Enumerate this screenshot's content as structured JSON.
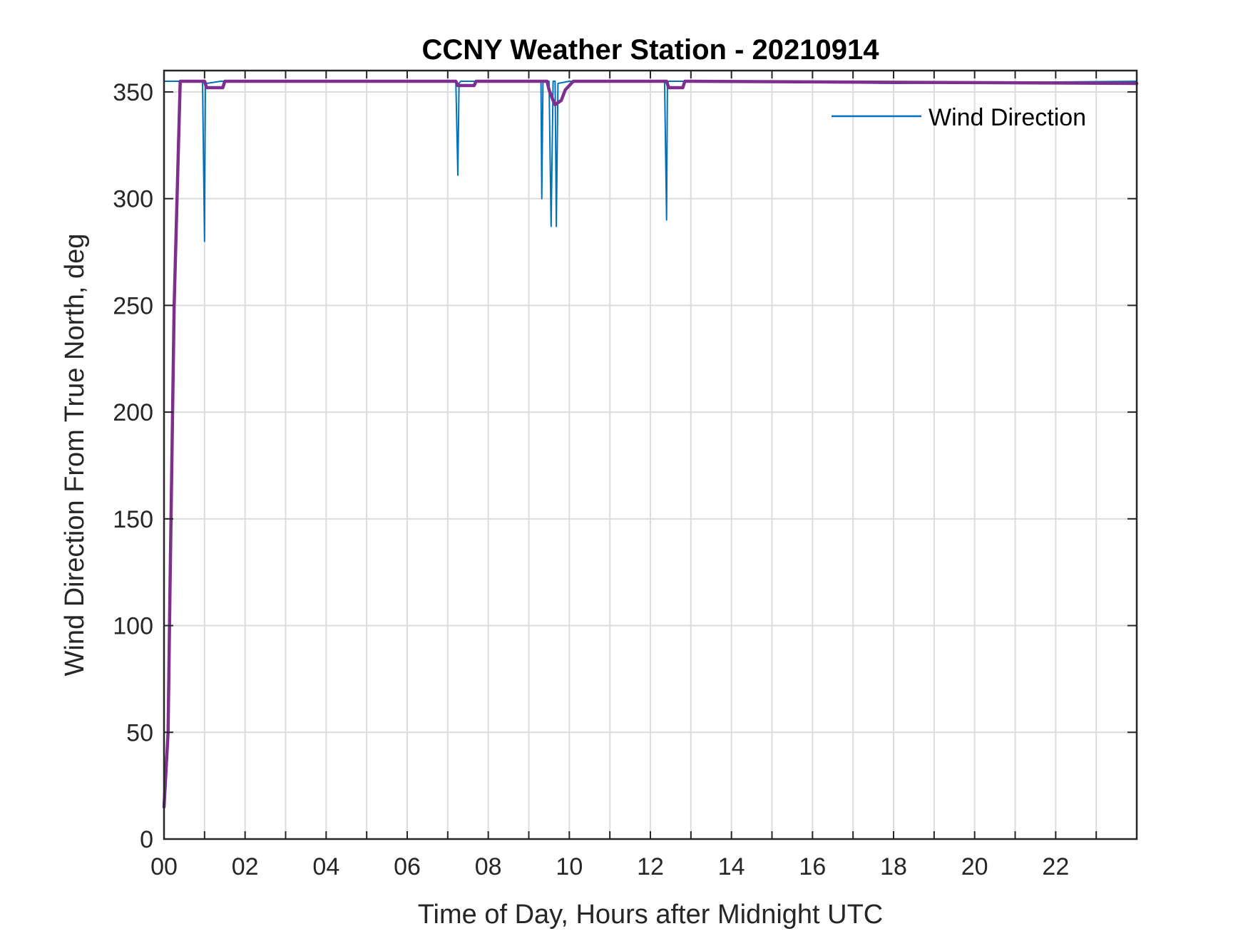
{
  "chart_data": {
    "type": "line",
    "title": "CCNY Weather Station - 20210914",
    "xlabel": "Time of Day, Hours after Midnight UTC",
    "ylabel": "Wind Direction From True North, deg",
    "xlim": [
      0,
      24
    ],
    "ylim": [
      0,
      360
    ],
    "xticks": [
      0,
      2,
      4,
      6,
      8,
      10,
      12,
      14,
      16,
      18,
      20,
      22
    ],
    "xtick_labels": [
      "00",
      "02",
      "04",
      "06",
      "08",
      "10",
      "12",
      "14",
      "16",
      "18",
      "20",
      "22"
    ],
    "yticks": [
      0,
      50,
      100,
      150,
      200,
      250,
      300,
      350
    ],
    "ytick_labels": [
      "0",
      "50",
      "100",
      "150",
      "200",
      "250",
      "300",
      "350"
    ],
    "grid": true,
    "legend": {
      "position": "top-right",
      "entries": [
        "Wind Direction"
      ]
    },
    "series": [
      {
        "name": "Wind Direction",
        "color": "#0072BD",
        "x": [
          0,
          0.95,
          1.0,
          1.02,
          1.05,
          1.4,
          2.0,
          7.2,
          7.25,
          7.28,
          7.32,
          7.5,
          9.3,
          9.32,
          9.35,
          9.5,
          9.55,
          9.6,
          9.65,
          9.68,
          9.72,
          10.0,
          12.35,
          12.4,
          12.42,
          12.45,
          13.0,
          18.0,
          24.0
        ],
        "y": [
          355,
          355,
          280,
          355,
          354,
          355,
          355,
          355,
          311,
          354,
          355,
          355,
          355,
          300,
          355,
          355,
          287,
          355,
          355,
          287,
          354,
          355,
          355,
          290,
          354,
          355,
          355,
          354,
          355
        ]
      },
      {
        "color": "#7E2F8E",
        "x": [
          0,
          0.1,
          0.15,
          0.25,
          0.4,
          0.6,
          1.0,
          1.05,
          1.45,
          1.5,
          2.0,
          7.2,
          7.25,
          7.65,
          7.7,
          9.3,
          9.45,
          9.5,
          9.6,
          9.65,
          9.8,
          9.9,
          10.1,
          12.4,
          12.45,
          12.8,
          12.85,
          13.0,
          24.0
        ],
        "y": [
          15,
          50,
          120,
          250,
          355,
          355,
          355,
          352,
          352,
          355,
          355,
          355,
          353,
          353,
          355,
          355,
          355,
          351,
          346,
          344,
          346,
          351,
          355,
          355,
          352,
          352,
          355,
          355,
          354
        ]
      }
    ]
  }
}
